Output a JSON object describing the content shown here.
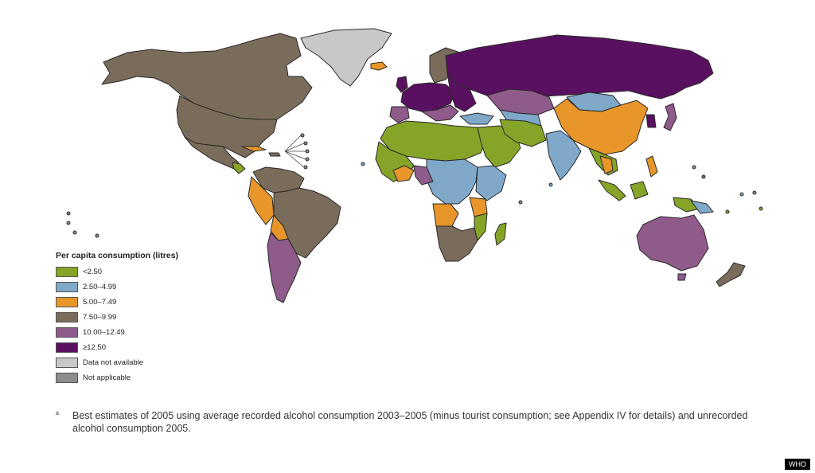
{
  "colors": {
    "lt_2_50": "#86a427",
    "c_2_50_4_99": "#7fa8c9",
    "c_5_00_7_49": "#e8962a",
    "c_7_50_9_99": "#7a6c5b",
    "c_10_00_12_49": "#8e5b8a",
    "ge_12_50": "#5a1060",
    "no_data": "#c8c8c8",
    "not_applicable": "#8c8c8c"
  },
  "legend": {
    "title": "Per capita consumption (litres)",
    "items": [
      {
        "label": "<2.50",
        "color": "#86a427"
      },
      {
        "label": "2.50–4.99",
        "color": "#7fa8c9"
      },
      {
        "label": "5.00–7.49",
        "color": "#e8962a"
      },
      {
        "label": "7.50–9.99",
        "color": "#7a6c5b"
      },
      {
        "label": "10.00–12.49",
        "color": "#8e5b8a"
      },
      {
        "label": "≥12.50",
        "color": "#5a1060"
      },
      {
        "label": "Data not available",
        "color": "#c8c8c8"
      },
      {
        "label": "Not applicable",
        "color": "#8c8c8c"
      }
    ]
  },
  "footnote": {
    "mark": "a",
    "text": "Best estimates of 2005 using average recorded alcohol consumption 2003–2005 (minus tourist consumption; see Appendix IV for details) and unrecorded alcohol consumption 2005."
  },
  "credit": "WHO"
}
